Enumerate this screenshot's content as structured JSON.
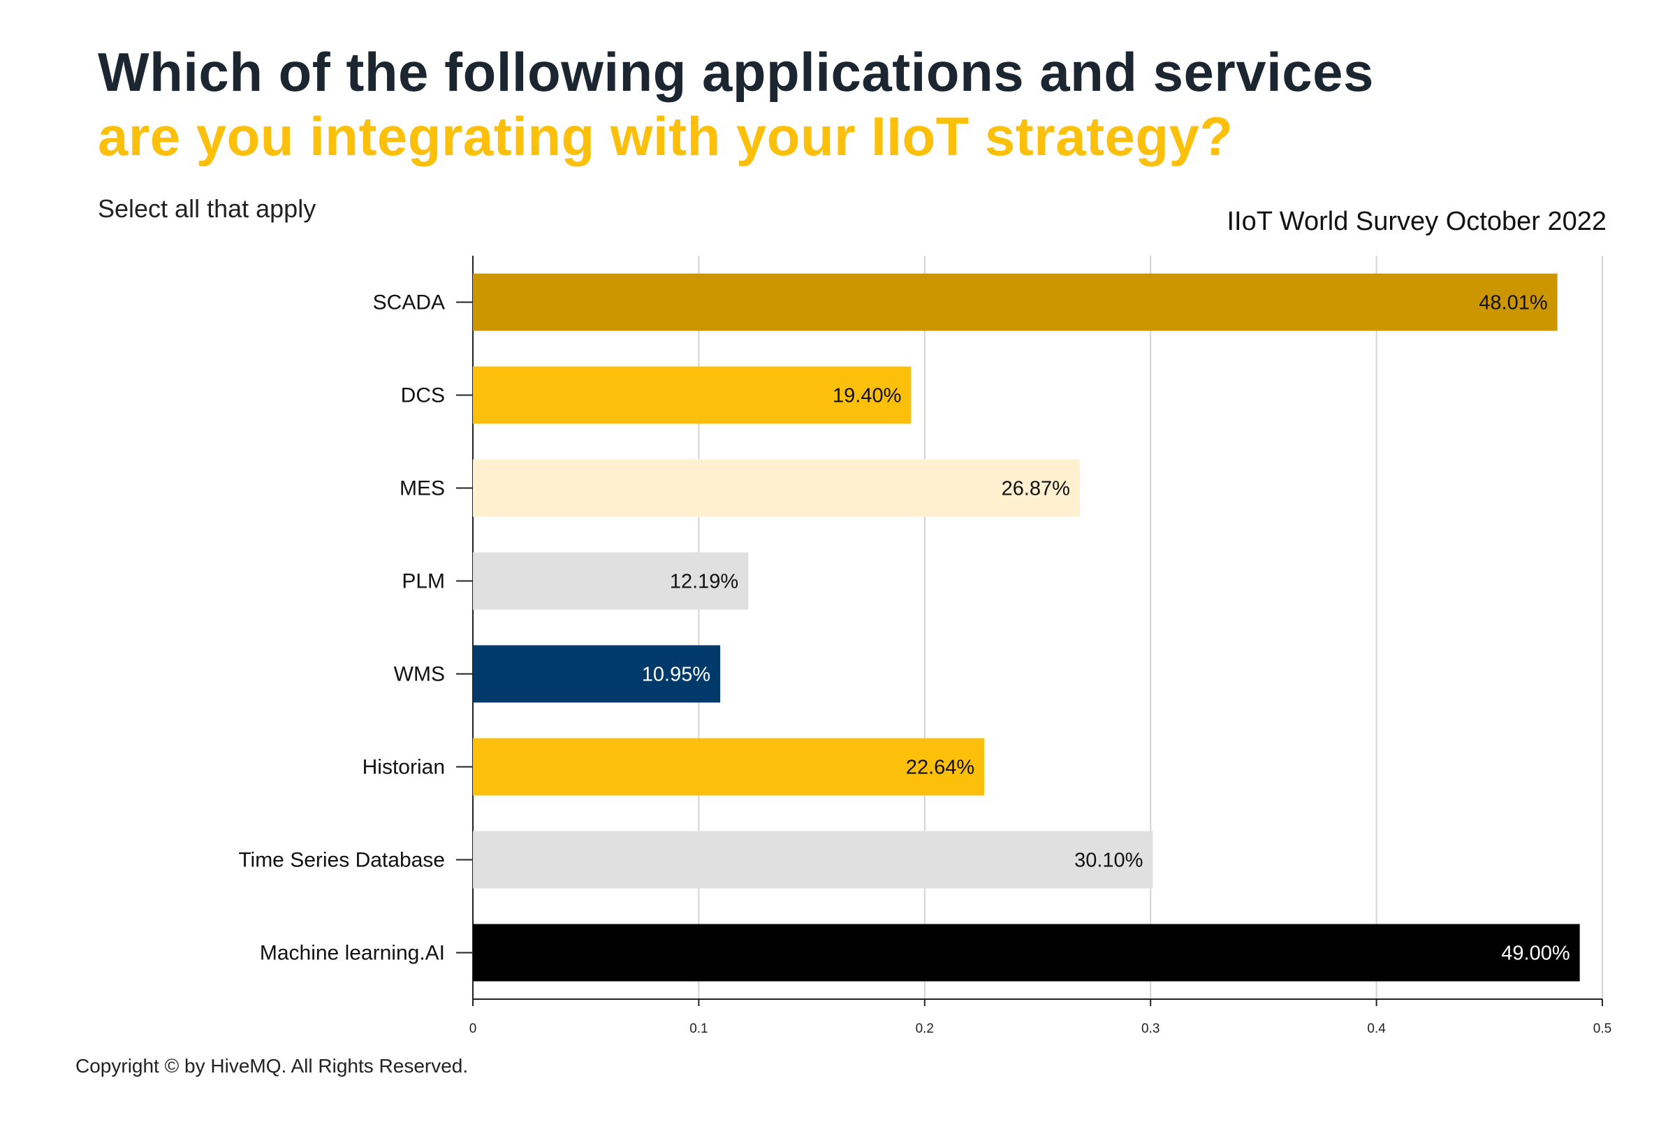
{
  "header": {
    "title_line1": "Which of the following applications and services",
    "title_line2": "are you integrating with your IIoT strategy?",
    "subtitle": "Select all that apply",
    "source": "IIoT World Survey October 2022"
  },
  "footer": {
    "copyright": "Copyright © by HiveMQ. All Rights Reserved."
  },
  "colors": {
    "title_dark": "#1b2631",
    "title_accent": "#fcc00a"
  },
  "chart_data": {
    "type": "bar",
    "orientation": "horizontal",
    "categories": [
      "SCADA",
      "DCS",
      "MES",
      "PLM",
      "WMS",
      "Historian",
      "Time Series Database",
      "Machine learning.AI"
    ],
    "values": [
      0.4801,
      0.194,
      0.2687,
      0.1219,
      0.1095,
      0.2264,
      0.301,
      0.49
    ],
    "value_labels": [
      "48.01%",
      "19.40%",
      "26.87%",
      "12.19%",
      "10.95%",
      "22.64%",
      "30.10%",
      "49.00%"
    ],
    "bar_colors": [
      "#cc9600",
      "#fcc00a",
      "#fff1cf",
      "#e0e0e0",
      "#003a6b",
      "#fcc00a",
      "#e0e0e0",
      "#000000"
    ],
    "label_colors": [
      "#111111",
      "#111111",
      "#111111",
      "#111111",
      "#ffffff",
      "#111111",
      "#111111",
      "#ffffff"
    ],
    "xlim": [
      0,
      0.5
    ],
    "x_ticks": [
      0,
      0.1,
      0.2,
      0.3,
      0.4,
      0.5
    ],
    "x_tick_labels": [
      "0",
      "0.1",
      "0.2",
      "0.3",
      "0.4",
      "0.5"
    ],
    "grid": true,
    "legend": false
  }
}
